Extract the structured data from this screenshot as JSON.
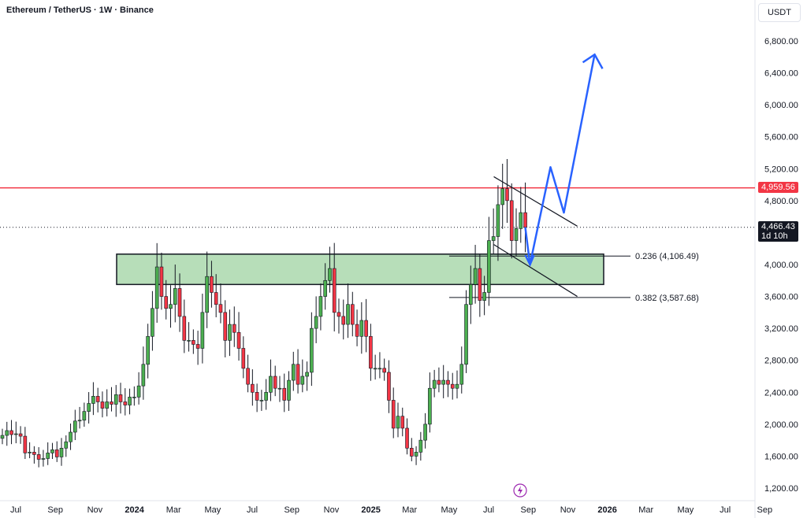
{
  "header": {
    "title": "Ethereum / TetherUS · 1W · Binance",
    "currency": "USDT"
  },
  "chart_data": {
    "type": "candlestick",
    "ylim": [
      1100,
      7000
    ],
    "y_ticks": [
      "1,200.00",
      "1,600.00",
      "2,000.00",
      "2,400.00",
      "2,800.00",
      "3,200.00",
      "3,600.00",
      "4,000.00",
      "4,400.00",
      "4,800.00",
      "5,200.00",
      "5,600.00",
      "6,000.00",
      "6,400.00",
      "6,800.00"
    ],
    "x_ticks": [
      {
        "label": "Jul",
        "t": 0,
        "bold": false
      },
      {
        "label": "Sep",
        "t": 8.7,
        "bold": false
      },
      {
        "label": "Nov",
        "t": 17.4,
        "bold": false
      },
      {
        "label": "2024",
        "t": 26.1,
        "bold": true
      },
      {
        "label": "Mar",
        "t": 34.7,
        "bold": false
      },
      {
        "label": "May",
        "t": 43.3,
        "bold": false
      },
      {
        "label": "Jul",
        "t": 52.0,
        "bold": false
      },
      {
        "label": "Sep",
        "t": 60.7,
        "bold": false
      },
      {
        "label": "Nov",
        "t": 69.4,
        "bold": false
      },
      {
        "label": "2025",
        "t": 78.1,
        "bold": true
      },
      {
        "label": "Mar",
        "t": 86.6,
        "bold": false
      },
      {
        "label": "May",
        "t": 95.3,
        "bold": false
      },
      {
        "label": "Jul",
        "t": 104.0,
        "bold": false
      },
      {
        "label": "Sep",
        "t": 112.7,
        "bold": false
      },
      {
        "label": "Nov",
        "t": 121.4,
        "bold": false
      },
      {
        "label": "2026",
        "t": 130.1,
        "bold": true
      },
      {
        "label": "Mar",
        "t": 138.6,
        "bold": false
      },
      {
        "label": "May",
        "t": 147.3,
        "bold": false
      },
      {
        "label": "Jul",
        "t": 156.0,
        "bold": false
      },
      {
        "label": "Sep",
        "t": 164.7,
        "bold": false
      }
    ],
    "close_series": [
      1860,
      1920,
      1870,
      1880,
      1850,
      1640,
      1650,
      1620,
      1560,
      1570,
      1640,
      1680,
      1590,
      1700,
      1780,
      1900,
      2040,
      2050,
      2160,
      2260,
      2350,
      2280,
      2200,
      2280,
      2250,
      2370,
      2280,
      2240,
      2340,
      2340,
      2480,
      2750,
      3100,
      3450,
      3970,
      3600,
      3450,
      3500,
      3700,
      3350,
      3050,
      3050,
      3000,
      2950,
      3400,
      3850,
      3650,
      3500,
      3400,
      3050,
      3250,
      3150,
      2950,
      2700,
      2500,
      2400,
      2300,
      2300,
      2400,
      2600,
      2450,
      2450,
      2300,
      2550,
      2750,
      2500,
      2600,
      2650,
      3200,
      3350,
      3600,
      3800,
      3950,
      3400,
      3350,
      3250,
      3500,
      3250,
      3100,
      3300,
      3100,
      2700,
      2700,
      2700,
      2650,
      2300,
      1950,
      2100,
      1950,
      1700,
      1600,
      1650,
      1800,
      2000,
      2450,
      2550,
      2500,
      2550,
      2500,
      2450,
      2500,
      2750,
      3500,
      3750,
      3950,
      3550,
      3650,
      4300,
      4350,
      4750,
      4950,
      4800,
      4300,
      4450,
      4650,
      4466.43
    ],
    "price_levels": [
      {
        "label": "0.236 (4,106.49)",
        "value": 4106.49
      },
      {
        "label": "0.382 (3,587.68)",
        "value": 3587.68
      }
    ],
    "resistance": {
      "value": 4959.56,
      "label": "4,959.56",
      "color": "#f23645"
    },
    "last_price": {
      "value": 4466.43,
      "label": "4,466.43",
      "countdown": "1d 10h",
      "color": "#131722"
    },
    "demand_zone": {
      "low": 3750,
      "high": 4130
    },
    "colors": {
      "up": "#4caf50",
      "down": "#f23645",
      "projection": "#2962ff",
      "zone_fill": "#a5d6a7",
      "line": "#131722"
    }
  }
}
